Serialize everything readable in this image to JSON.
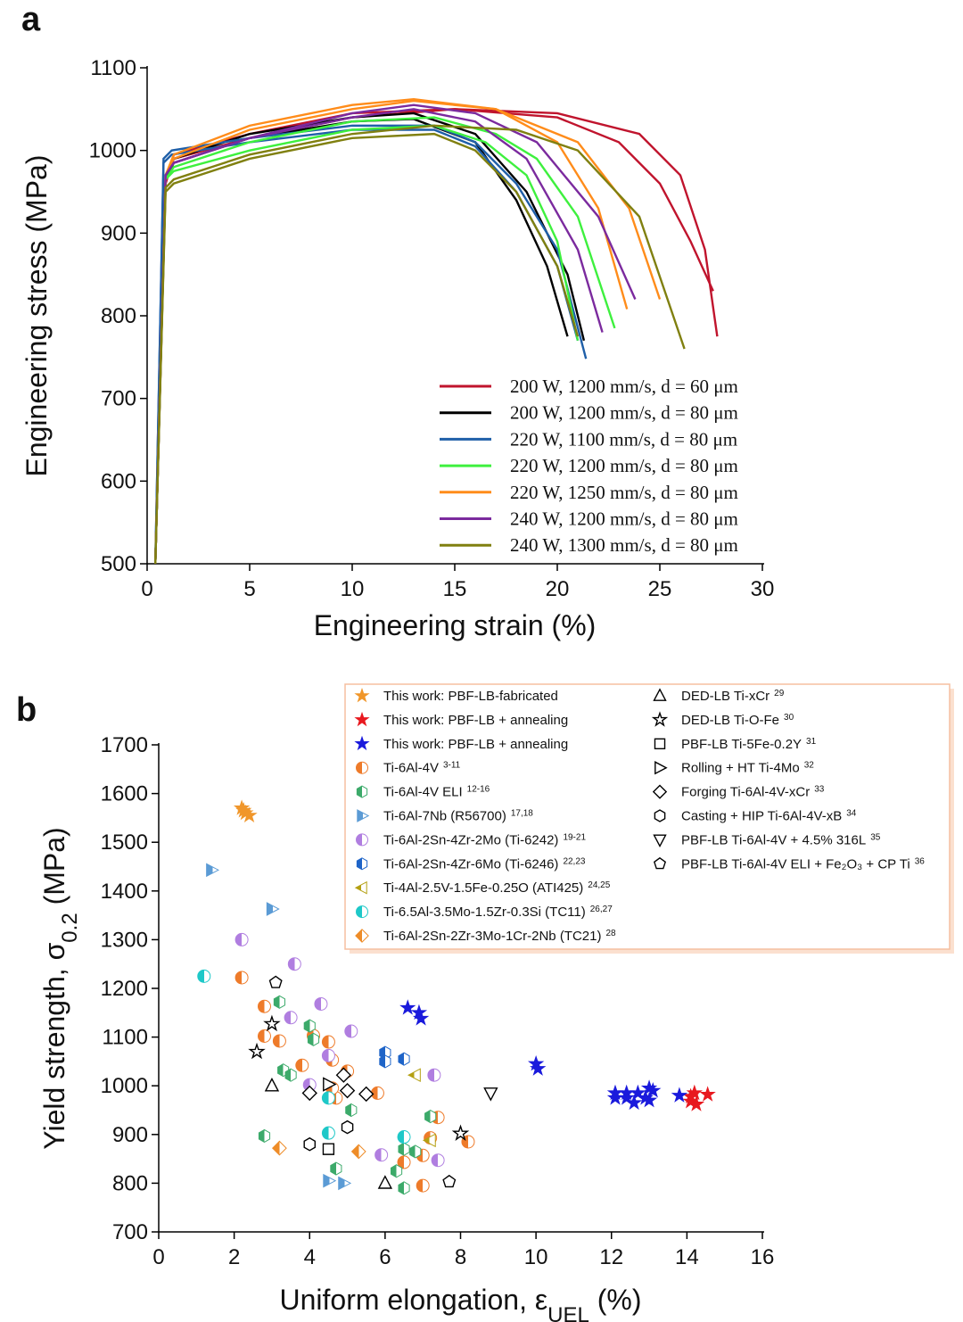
{
  "chart_data": [
    {
      "type": "line",
      "panel_label": "a",
      "x_label": "Engineering strain (%)",
      "y_label": "Engineering stress (MPa)",
      "xlim": [
        0,
        30
      ],
      "xticks": [
        0,
        5,
        10,
        15,
        20,
        25,
        30
      ],
      "ylim": [
        500,
        1100
      ],
      "yticks": [
        500,
        600,
        700,
        800,
        900,
        1000,
        1100
      ],
      "series": [
        {
          "name": "200 W, 1200 mm/s, d = 60 μm",
          "color": "#c0142d",
          "curves": [
            {
              "x": [
                0.4,
                0.9,
                1.3,
                5,
                10,
                15,
                20,
                23,
                25,
                26.5,
                27.6
              ],
              "values": [
                500,
                960,
                995,
                1020,
                1045,
                1050,
                1040,
                1010,
                960,
                890,
                830
              ]
            },
            {
              "x": [
                0.4,
                0.9,
                1.3,
                5,
                10,
                15,
                20,
                24,
                26,
                27.2,
                27.8
              ],
              "values": [
                500,
                960,
                990,
                1015,
                1040,
                1050,
                1045,
                1020,
                970,
                880,
                775
              ]
            }
          ]
        },
        {
          "name": "200 W, 1200 mm/s, d = 80 μm",
          "color": "#000000",
          "curves": [
            {
              "x": [
                0.4,
                0.9,
                1.3,
                5,
                10,
                13,
                16,
                18,
                19.5,
                20.5
              ],
              "values": [
                500,
                965,
                985,
                1015,
                1035,
                1038,
                1010,
                940,
                860,
                775
              ]
            },
            {
              "x": [
                0.4,
                0.9,
                1.3,
                5,
                10,
                13,
                16,
                18.5,
                20.5,
                21.3
              ],
              "values": [
                500,
                970,
                990,
                1020,
                1040,
                1045,
                1020,
                950,
                850,
                770
              ]
            }
          ]
        },
        {
          "name": "220 W, 1100 mm/s, d = 80 μm",
          "color": "#1f5fa8",
          "curves": [
            {
              "x": [
                0.4,
                0.8,
                1.2,
                5,
                10,
                14,
                16,
                18,
                20,
                21.4
              ],
              "values": [
                500,
                990,
                1000,
                1015,
                1030,
                1030,
                1010,
                960,
                880,
                748
              ]
            },
            {
              "x": [
                0.4,
                0.8,
                1.2,
                5,
                10,
                14,
                16,
                18,
                20,
                21
              ],
              "values": [
                500,
                985,
                995,
                1010,
                1025,
                1025,
                1005,
                950,
                860,
                770
              ]
            }
          ]
        },
        {
          "name": "220 W, 1200 mm/s, d = 80 μm",
          "color": "#3ef03e",
          "curves": [
            {
              "x": [
                0.4,
                0.9,
                1.3,
                5,
                10,
                14,
                17,
                19,
                21,
                22.8
              ],
              "values": [
                500,
                965,
                980,
                1010,
                1035,
                1040,
                1020,
                990,
                920,
                785
              ]
            },
            {
              "x": [
                0.4,
                0.9,
                1.3,
                5,
                10,
                14,
                16.5,
                18.5,
                20,
                21
              ],
              "values": [
                500,
                965,
                975,
                1000,
                1025,
                1030,
                1010,
                970,
                890,
                770
              ]
            }
          ]
        },
        {
          "name": "220 W, 1250 mm/s, d = 80 μm",
          "color": "#ff8c1a",
          "curves": [
            {
              "x": [
                0.4,
                0.9,
                1.3,
                5,
                10,
                13,
                17,
                20,
                22,
                23.4
              ],
              "values": [
                500,
                970,
                995,
                1030,
                1055,
                1062,
                1050,
                1010,
                930,
                808
              ]
            },
            {
              "x": [
                0.4,
                0.9,
                1.3,
                5,
                10,
                13,
                17,
                21,
                23.5,
                25
              ],
              "values": [
                500,
                970,
                990,
                1025,
                1050,
                1060,
                1050,
                1010,
                930,
                820
              ]
            }
          ]
        },
        {
          "name": "240 W, 1200 mm/s, d = 80 μm",
          "color": "#7b2a9e",
          "curves": [
            {
              "x": [
                0.4,
                0.9,
                1.3,
                5,
                10,
                13,
                16,
                19,
                22,
                23.8
              ],
              "values": [
                500,
                970,
                985,
                1015,
                1045,
                1055,
                1045,
                1010,
                920,
                820
              ]
            },
            {
              "x": [
                0.4,
                0.9,
                1.3,
                5,
                10,
                13,
                16,
                18.5,
                21,
                22.2
              ],
              "values": [
                500,
                970,
                985,
                1015,
                1040,
                1050,
                1035,
                990,
                880,
                780
              ]
            }
          ]
        },
        {
          "name": "240 W, 1300 mm/s, d = 80 μm",
          "color": "#808010",
          "curves": [
            {
              "x": [
                0.4,
                0.9,
                1.3,
                5,
                10,
                14,
                18,
                21,
                24,
                26.2
              ],
              "values": [
                500,
                955,
                965,
                995,
                1020,
                1030,
                1025,
                1000,
                920,
                760
              ]
            },
            {
              "x": [
                0.4,
                0.9,
                1.3,
                5,
                10,
                14,
                16,
                18,
                20,
                21
              ],
              "values": [
                500,
                950,
                960,
                990,
                1015,
                1020,
                1000,
                950,
                860,
                775
              ]
            }
          ]
        }
      ]
    },
    {
      "type": "scatter",
      "panel_label": "b",
      "x_label": [
        {
          "text": "Uniform elongation, ε"
        },
        {
          "text": "UEL",
          "sub": true
        },
        {
          "text": " (%)"
        }
      ],
      "y_label": [
        {
          "text": "Yield strength, σ"
        },
        {
          "text": "0.2",
          "sub": true
        },
        {
          "text": " (MPa)"
        }
      ],
      "xlim": [
        0,
        16
      ],
      "xticks": [
        0,
        2,
        4,
        6,
        8,
        10,
        12,
        14,
        16
      ],
      "ylim": [
        700,
        1700
      ],
      "yticks": [
        700,
        800,
        900,
        1000,
        1100,
        1200,
        1300,
        1400,
        1500,
        1600,
        1700
      ],
      "series": [
        {
          "name": "This work: PBF-LB-fabricated",
          "color": "#f0962a",
          "marker": "star",
          "fill": "full",
          "x": [
            2.2,
            2.25,
            2.3,
            2.4
          ],
          "values": [
            1570,
            1565,
            1560,
            1555
          ]
        },
        {
          "name": "This work: PBF-LB + annealing",
          "color": "#e8191f",
          "marker": "star",
          "fill": "full",
          "x": [
            14.1,
            14.2,
            14.25,
            14.55,
            14.1
          ],
          "values": [
            968,
            985,
            962,
            982,
            978
          ]
        },
        {
          "name": "This work: PBF-LB + annealing",
          "color": "#1a1adc",
          "marker": "star",
          "fill": "full",
          "x": [
            6.6,
            6.9,
            6.95,
            10.0,
            10.05,
            12.1,
            12.1,
            12.4,
            12.4,
            12.6,
            12.7,
            12.9,
            13.0,
            13.0,
            13.1,
            13.8
          ],
          "values": [
            1160,
            1150,
            1138,
            1045,
            1035,
            985,
            975,
            985,
            975,
            965,
            985,
            975,
            995,
            970,
            990,
            980
          ]
        },
        {
          "name": "Ti-6Al-4V",
          "ref": "3-11",
          "color": "#ee7b2a",
          "marker": "circle",
          "fill": "half",
          "x": [
            2.2,
            2.8,
            2.8,
            3.2,
            3.8,
            4.1,
            4.5,
            4.6,
            5.0,
            4.7,
            4.6,
            5.8,
            6.5,
            7.0,
            7.0,
            7.4,
            8.2,
            7.2
          ],
          "values": [
            1222,
            1163,
            1102,
            1092,
            1042,
            1103,
            1090,
            1053,
            1030,
            975,
            995,
            985,
            843,
            857,
            795,
            935,
            885,
            893
          ]
        },
        {
          "name": "Ti-6Al-4V ELI",
          "ref": "12-16",
          "color": "#3caa6a",
          "marker": "hexagon",
          "fill": "half",
          "x": [
            3.2,
            4.0,
            4.1,
            3.3,
            3.5,
            2.8,
            5.1,
            4.7,
            6.3,
            6.5,
            6.8,
            6.5,
            7.2
          ],
          "values": [
            1172,
            1123,
            1095,
            1032,
            1022,
            897,
            950,
            830,
            825,
            870,
            865,
            790,
            937
          ]
        },
        {
          "name": "Ti-6Al-7Nb (R56700)",
          "ref": "17,18",
          "color": "#5b9bd5",
          "marker": "tri-right",
          "fill": "half",
          "x": [
            1.4,
            3.0,
            4.5,
            4.9
          ],
          "values": [
            1443,
            1363,
            805,
            800
          ]
        },
        {
          "name": "Ti-6Al-2Sn-4Zr-2Mo (Ti-6242)",
          "ref": "19-21",
          "color": "#b07ee0",
          "marker": "circle",
          "fill": "half",
          "x": [
            2.2,
            3.6,
            3.5,
            4.3,
            4.5,
            4.0,
            5.1,
            7.3,
            7.4,
            5.9
          ],
          "values": [
            1300,
            1250,
            1140,
            1168,
            1062,
            1002,
            1112,
            1022,
            847,
            858
          ]
        },
        {
          "name": "Ti-6Al-2Sn-4Zr-6Mo (Ti-6246)",
          "ref": "22,23",
          "color": "#1e64c8",
          "marker": "hexagon",
          "fill": "half",
          "x": [
            6.0,
            6.0,
            6.5
          ],
          "values": [
            1068,
            1050,
            1055
          ]
        },
        {
          "name": "Ti-4Al-2.5V-1.5Fe-0.25O (ATI425)",
          "ref": "24,25",
          "color": "#b4a012",
          "marker": "tri-left",
          "fill": "half",
          "x": [
            6.8,
            7.2
          ],
          "values": [
            1022,
            888
          ]
        },
        {
          "name": "Ti-6.5Al-3.5Mo-1.5Zr-0.3Si (TC11)",
          "ref": "26,27",
          "color": "#1ec8c8",
          "marker": "circle",
          "fill": "half",
          "x": [
            1.2,
            4.5,
            4.5,
            6.5
          ],
          "values": [
            1225,
            975,
            903,
            895
          ]
        },
        {
          "name": "Ti-6Al-2Sn-2Zr-3Mo-1Cr-2Nb (TC21)",
          "ref": "28",
          "color": "#ee8c28",
          "marker": "diamond",
          "fill": "half",
          "x": [
            3.2,
            5.3
          ],
          "values": [
            872,
            865
          ]
        },
        {
          "name": "DED-LB Ti-xCr",
          "ref": "29",
          "color": "#000000",
          "marker": "tri-up",
          "fill": "open",
          "x": [
            3.0,
            6.0
          ],
          "values": [
            1000,
            800
          ]
        },
        {
          "name": "DED-LB Ti-O-Fe",
          "ref": "30",
          "color": "#000000",
          "marker": "star",
          "fill": "open",
          "x": [
            3.0,
            2.6,
            8.0
          ],
          "values": [
            1127,
            1070,
            902
          ]
        },
        {
          "name": "PBF-LB Ti-5Fe-0.2Y",
          "ref": "31",
          "color": "#000000",
          "marker": "square",
          "fill": "open",
          "x": [
            4.5
          ],
          "values": [
            870
          ]
        },
        {
          "name": "Rolling + HT Ti-4Mo",
          "ref": "32",
          "color": "#000000",
          "marker": "tri-right",
          "fill": "open",
          "x": [
            4.5
          ],
          "values": [
            1003
          ]
        },
        {
          "name": "Forging Ti-6Al-4V-xCr",
          "ref": "33",
          "color": "#000000",
          "marker": "diamond",
          "fill": "open",
          "x": [
            4.0,
            4.9,
            5.0,
            5.5
          ],
          "values": [
            985,
            1022,
            990,
            983
          ]
        },
        {
          "name": "Casting + HIP Ti-6Al-4V-xB",
          "ref": "34",
          "color": "#000000",
          "marker": "hexagon",
          "fill": "open",
          "x": [
            5.0,
            4.0
          ],
          "values": [
            915,
            880
          ]
        },
        {
          "name": "PBF-LB Ti-6Al-4V + 4.5% 316L",
          "ref": "35",
          "color": "#000000",
          "marker": "tri-down",
          "fill": "open",
          "x": [
            8.8
          ],
          "values": [
            985
          ]
        },
        {
          "name": "PBF-LB Ti-6Al-4V ELI + Fe₂O₃ + CP Ti",
          "ref": "36",
          "color": "#000000",
          "marker": "pentagon",
          "fill": "open",
          "x": [
            3.1,
            7.7
          ],
          "values": [
            1212,
            803
          ]
        }
      ]
    }
  ]
}
